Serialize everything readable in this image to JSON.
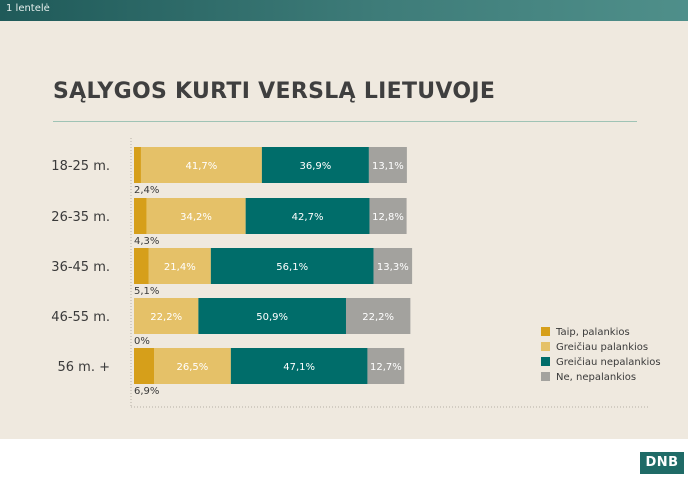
{
  "header": {
    "label": "1 lentelė"
  },
  "logo": {
    "text": "DNB"
  },
  "chart_data": {
    "type": "bar",
    "orientation": "horizontal",
    "stacked": true,
    "title": "SĄLYGOS KURTI VERSLĄ LIETUVOJE",
    "xlabel": "",
    "ylabel": "",
    "categories": [
      "18-25 m.",
      "26-35 m.",
      "36-45 m.",
      "46-55 m.",
      "56 m. +"
    ],
    "series": [
      {
        "name": "Taip, palankios",
        "color": "#d69f1a",
        "values": [
          2.4,
          4.3,
          5.1,
          0,
          6.9
        ],
        "labels": [
          "2,4%",
          "4,3%",
          "5,1%",
          "0%",
          "6,9%"
        ]
      },
      {
        "name": "Greičiau palankios",
        "color": "#e5c168",
        "values": [
          41.7,
          34.2,
          21.4,
          22.2,
          26.5
        ],
        "labels": [
          "41,7%",
          "34,2%",
          "21,4%",
          "22,2%",
          "26,5%"
        ]
      },
      {
        "name": "Greičiau nepalankios",
        "color": "#006d6a",
        "values": [
          36.9,
          42.7,
          56.1,
          50.9,
          47.1
        ],
        "labels": [
          "36,9%",
          "42,7%",
          "56,1%",
          "50,9%",
          "47,1%"
        ]
      },
      {
        "name": "Ne, nepalankios",
        "color": "#a3a29e",
        "values": [
          13.1,
          12.8,
          13.3,
          22.2,
          12.7
        ],
        "labels": [
          "13,1%",
          "12,8%",
          "13,3%",
          "22,2%",
          "12,7%"
        ]
      }
    ],
    "legend_position": "right",
    "grid": false
  }
}
